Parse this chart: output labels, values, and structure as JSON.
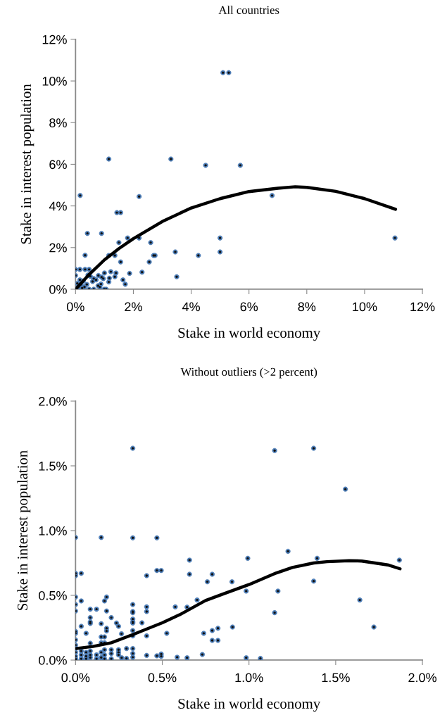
{
  "chart_data": [
    {
      "type": "scatter",
      "title": "All countries",
      "xlabel": "Stake in world economy",
      "ylabel": "Stake in interest population",
      "marker": "circle",
      "grid": false,
      "xlim": [
        0,
        12
      ],
      "ylim": [
        0,
        12
      ],
      "xticks": [
        {
          "value": 0,
          "label": "0%"
        },
        {
          "value": 2,
          "label": "2%"
        },
        {
          "value": 4,
          "label": "4%"
        },
        {
          "value": 6,
          "label": "6%"
        },
        {
          "value": 8,
          "label": "8%"
        },
        {
          "value": 10,
          "label": "10%"
        },
        {
          "value": 12,
          "label": "12%"
        }
      ],
      "yticks": [
        {
          "value": 0,
          "label": "0%"
        },
        {
          "value": 2,
          "label": "2%"
        },
        {
          "value": 4,
          "label": "4%"
        },
        {
          "value": 6,
          "label": "6%"
        },
        {
          "value": 8,
          "label": "8%"
        },
        {
          "value": 10,
          "label": "10%"
        },
        {
          "value": 12,
          "label": "12%"
        }
      ],
      "series": [
        {
          "color": "#4f81bd",
          "x": [
            5.1,
            5.3,
            1.15,
            3.3,
            4.5,
            5.7,
            0.16,
            2.2,
            6.8,
            1.43,
            1.56,
            0.41,
            0.9,
            1.8,
            2.2,
            5.0,
            11.05,
            1.5,
            2.6,
            0.33,
            1.15,
            1.36,
            2.7,
            2.75,
            3.45,
            4.25,
            5.0,
            1.56,
            2.55,
            3.5,
            2.3,
            1.87,
            1.22,
            1.4,
            1.0,
            1.64,
            1.72,
            0.99,
            1.06,
            1.17,
            1.15,
            1.36,
            0,
            0.15,
            0.33,
            0.47,
            0,
            0.79,
            0.9,
            0.71,
            0.59,
            0.88,
            0.78,
            0.63,
            0.47,
            0.31,
            0.15,
            0.06,
            0.23,
            0.39,
            0.51,
            0.43,
            0.96,
            0.84,
            0.02,
            0.1,
            0.19,
            0.27,
            0.63
          ],
          "values": [
            10.4,
            10.4,
            6.25,
            6.25,
            5.95,
            5.95,
            4.5,
            4.45,
            4.5,
            3.68,
            3.68,
            2.68,
            2.68,
            2.46,
            2.46,
            2.46,
            2.46,
            2.24,
            2.24,
            1.63,
            1.62,
            1.62,
            1.62,
            1.62,
            1.79,
            1.62,
            1.79,
            1.31,
            1.31,
            0.6,
            0.82,
            0.76,
            0.84,
            0.78,
            0.78,
            0.45,
            0.24,
            0,
            0,
            0.53,
            0.35,
            0.6,
            0.95,
            0.95,
            0.95,
            0.95,
            0.66,
            0.66,
            0.58,
            0.45,
            0.37,
            0.25,
            0.17,
            0,
            0,
            0.11,
            0.45,
            0.28,
            0.06,
            0.23,
            0.62,
            0.68,
            0.51,
            0.11,
            0,
            0.11,
            0.23,
            0.4,
            0.51
          ]
        },
        {
          "type": "line",
          "marker": "none",
          "color": "#000000",
          "x": [
            0,
            0.5,
            1,
            1.5,
            2,
            3,
            4,
            5,
            6,
            7,
            7.6,
            8,
            9,
            10,
            11.07
          ],
          "values": [
            0,
            0.75,
            1.41,
            1.95,
            2.43,
            3.25,
            3.9,
            4.35,
            4.69,
            4.85,
            4.92,
            4.89,
            4.7,
            4.35,
            3.84
          ]
        }
      ]
    },
    {
      "type": "scatter",
      "title": "Without outliers (>2 percent)",
      "xlabel": "Stake in world economy",
      "ylabel": "Stake in interest population",
      "marker": "circle",
      "grid": false,
      "xlim": [
        0,
        2
      ],
      "ylim": [
        0,
        2
      ],
      "xticks": [
        {
          "value": 0,
          "label": "0.0%"
        },
        {
          "value": 0.5,
          "label": "0.5%"
        },
        {
          "value": 1,
          "label": "1.0%"
        },
        {
          "value": 1.5,
          "label": "1.5%"
        },
        {
          "value": 2,
          "label": "2.0%"
        }
      ],
      "yticks": [
        {
          "value": 0,
          "label": "0.0%"
        },
        {
          "value": 0.5,
          "label": "0.5%"
        },
        {
          "value": 1,
          "label": "1.0%"
        },
        {
          "value": 1.5,
          "label": "1.5%"
        },
        {
          "value": 2,
          "label": "2.0%"
        }
      ],
      "series": [
        {
          "color": "#4f81bd",
          "x": [
            0.33,
            1.148,
            1.373,
            1.556,
            0,
            0.148,
            0.33,
            0.469,
            1.225,
            0.993,
            1.393,
            1.867,
            0.657,
            0.469,
            0.494,
            0,
            0,
            0.033,
            0.41,
            0.657,
            0.788,
            0.76,
            0.902,
            1.373,
            0.984,
            1.167,
            0.701,
            1.639,
            0.575,
            0.643,
            1.148,
            0.905,
            1.72,
            0.739,
            0.788,
            0.821,
            0.788,
            0.821,
            0.526,
            0.41,
            0.41,
            0.41,
            0.41,
            0.33,
            0.33,
            0.33,
            0.33,
            0.33,
            0.33,
            0.33,
            0.33,
            0.33,
            0.33,
            0.33,
            0.383,
            0.265,
            0.248,
            0.236,
            0.294,
            0.294,
            0.266,
            0.206,
            0.179,
            0.167,
            0.179,
            0.179,
            0.179,
            0.148,
            0.148,
            0.167,
            0.148,
            0.167,
            0.121,
            0.085,
            0.085,
            0.085,
            0.085,
            0.085,
            0.061,
            0.033,
            0.033,
            0,
            0,
            0,
            0,
            0,
            0,
            0,
            0.494,
            0.494,
            0.469,
            0.586,
            0.643,
            0.731,
            0.984,
            1.066,
            0,
            0,
            0,
            0,
            0,
            0.033,
            0.033,
            0.033,
            0.061,
            0.061,
            0.061,
            0.085,
            0.085,
            0.085,
            0.121,
            0.121,
            0.148,
            0.148,
            0.167,
            0.167,
            0.167,
            0.206,
            0.206,
            0.206,
            0.248,
            0.248,
            0.248
          ],
          "values": [
            1.636,
            1.618,
            1.636,
            1.32,
            0.947,
            0.947,
            0.944,
            0.944,
            0.84,
            0.786,
            0.786,
            0.772,
            0.772,
            0.692,
            0.692,
            0.67,
            0.652,
            0.67,
            0.652,
            0.663,
            0.663,
            0.605,
            0.605,
            0.61,
            0.533,
            0.533,
            0.464,
            0.464,
            0.411,
            0.409,
            0.366,
            0.255,
            0.255,
            0.207,
            0.228,
            0.246,
            0.152,
            0.152,
            0.207,
            0.411,
            0.375,
            0.187,
            0.036,
            0.429,
            0.375,
            0.366,
            0.317,
            0.295,
            0.286,
            0.228,
            0.187,
            0.089,
            0.051,
            0.022,
            0.288,
            0.203,
            0.261,
            0.286,
            0.089,
            0.013,
            0.018,
            0.328,
            0.487,
            0.457,
            0.379,
            0.246,
            0.225,
            0.281,
            0.179,
            0.179,
            0.134,
            0.134,
            0.393,
            0.393,
            0.328,
            0.295,
            0.283,
            0.13,
            0.207,
            0.261,
            0.457,
            0.487,
            0.429,
            0.379,
            0.221,
            0.207,
            0.156,
            0.116,
            0.047,
            0.029,
            0.033,
            0.022,
            0.018,
            0.043,
            0.018,
            0.013,
            0.09,
            0.06,
            0.03,
            0.01,
            0,
            0.07,
            0.04,
            0.01,
            0.06,
            0.03,
            0.01,
            0.07,
            0.04,
            0.02,
            0.04,
            0.01,
            0.06,
            0.02,
            0.08,
            0.04,
            0.01,
            0.08,
            0.05,
            0.01,
            0.08,
            0.06,
            0.04
          ]
        },
        {
          "type": "line",
          "marker": "none",
          "color": "#000000",
          "x": [
            0,
            0.1,
            0.206,
            0.33,
            0.5,
            0.6,
            0.749,
            0.85,
            1.0,
            1.156,
            1.25,
            1.373,
            1.45,
            1.577,
            1.65,
            1.726,
            1.8,
            1.871
          ],
          "values": [
            0.089,
            0.105,
            0.134,
            0.197,
            0.288,
            0.35,
            0.46,
            0.51,
            0.583,
            0.672,
            0.715,
            0.75,
            0.76,
            0.768,
            0.765,
            0.75,
            0.735,
            0.705
          ]
        }
      ]
    }
  ]
}
